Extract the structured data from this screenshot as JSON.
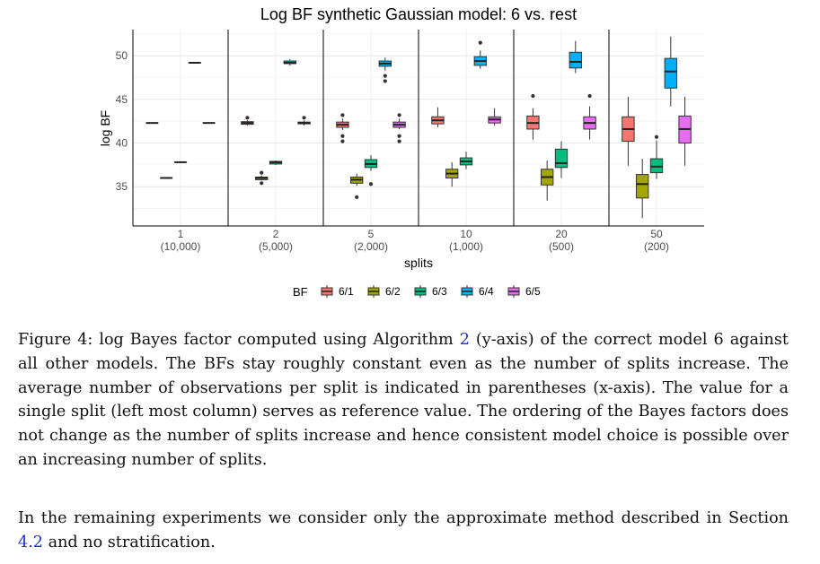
{
  "chart_data": {
    "type": "boxplot",
    "title": "Log BF synthetic Gaussian model: 6 vs. rest",
    "xlabel": "splits",
    "ylabel": "log BF",
    "ylim": [
      30.5,
      53
    ],
    "yticks": [
      35,
      40,
      45,
      50
    ],
    "panels": [
      {
        "label": "1",
        "sublabel": "(10,000)"
      },
      {
        "label": "2",
        "sublabel": "(5,000)"
      },
      {
        "label": "5",
        "sublabel": "(2,000)"
      },
      {
        "label": "10",
        "sublabel": "(1,000)"
      },
      {
        "label": "20",
        "sublabel": "(500)"
      },
      {
        "label": "50",
        "sublabel": "(200)"
      }
    ],
    "legend": {
      "title": "BF",
      "position": "bottom",
      "entries": [
        {
          "name": "6/1",
          "color": "#F8766D"
        },
        {
          "name": "6/2",
          "color": "#A3A500"
        },
        {
          "name": "6/3",
          "color": "#00BF7D"
        },
        {
          "name": "6/4",
          "color": "#00B0F6"
        },
        {
          "name": "6/5",
          "color": "#E76BF3"
        }
      ]
    },
    "series": [
      {
        "name": "6/1",
        "boxes": [
          {
            "min": 42.3,
            "q1": 42.3,
            "median": 42.3,
            "q3": 42.3,
            "max": 42.3,
            "outliers": []
          },
          {
            "min": 42.0,
            "q1": 42.15,
            "median": 42.3,
            "q3": 42.45,
            "max": 42.6,
            "outliers": [
              42.9
            ]
          },
          {
            "min": 41.5,
            "q1": 41.8,
            "median": 42.1,
            "q3": 42.4,
            "max": 42.8,
            "outliers": [
              43.2,
              40.8,
              40.2
            ]
          },
          {
            "min": 41.8,
            "q1": 42.2,
            "median": 42.6,
            "q3": 43.0,
            "max": 44.1,
            "outliers": []
          },
          {
            "min": 40.4,
            "q1": 41.6,
            "median": 42.3,
            "q3": 43.1,
            "max": 44.0,
            "outliers": [
              45.4
            ]
          },
          {
            "min": 37.4,
            "q1": 40.2,
            "median": 41.6,
            "q3": 43.0,
            "max": 45.3,
            "outliers": []
          }
        ]
      },
      {
        "name": "6/2",
        "boxes": [
          {
            "min": 36.0,
            "q1": 36.0,
            "median": 36.0,
            "q3": 36.0,
            "max": 36.0,
            "outliers": []
          },
          {
            "min": 35.7,
            "q1": 35.8,
            "median": 36.0,
            "q3": 36.1,
            "max": 36.3,
            "outliers": [
              36.6,
              35.4
            ]
          },
          {
            "min": 35.1,
            "q1": 35.4,
            "median": 35.8,
            "q3": 36.1,
            "max": 36.5,
            "outliers": [
              33.8
            ]
          },
          {
            "min": 35.0,
            "q1": 36.0,
            "median": 36.5,
            "q3": 37.0,
            "max": 37.8,
            "outliers": []
          },
          {
            "min": 33.4,
            "q1": 35.2,
            "median": 36.1,
            "q3": 37.0,
            "max": 38.0,
            "outliers": []
          },
          {
            "min": 31.4,
            "q1": 33.7,
            "median": 35.3,
            "q3": 36.4,
            "max": 38.2,
            "outliers": []
          }
        ]
      },
      {
        "name": "6/3",
        "boxes": [
          {
            "min": 37.8,
            "q1": 37.8,
            "median": 37.8,
            "q3": 37.8,
            "max": 37.8,
            "outliers": []
          },
          {
            "min": 37.5,
            "q1": 37.6,
            "median": 37.8,
            "q3": 37.9,
            "max": 38.0,
            "outliers": []
          },
          {
            "min": 36.8,
            "q1": 37.2,
            "median": 37.6,
            "q3": 38.1,
            "max": 38.6,
            "outliers": [
              35.3
            ]
          },
          {
            "min": 37.0,
            "q1": 37.5,
            "median": 37.9,
            "q3": 38.3,
            "max": 39.0,
            "outliers": []
          },
          {
            "min": 36.0,
            "q1": 37.2,
            "median": 37.7,
            "q3": 39.3,
            "max": 40.2,
            "outliers": []
          },
          {
            "min": 35.9,
            "q1": 36.6,
            "median": 37.3,
            "q3": 38.2,
            "max": 40.3,
            "outliers": [
              40.7
            ]
          }
        ]
      },
      {
        "name": "6/4",
        "boxes": [
          {
            "min": 49.2,
            "q1": 49.2,
            "median": 49.2,
            "q3": 49.2,
            "max": 49.2,
            "outliers": []
          },
          {
            "min": 48.9,
            "q1": 49.1,
            "median": 49.2,
            "q3": 49.4,
            "max": 49.6,
            "outliers": []
          },
          {
            "min": 48.3,
            "q1": 48.8,
            "median": 49.1,
            "q3": 49.4,
            "max": 49.8,
            "outliers": [
              47.7,
              47.1
            ]
          },
          {
            "min": 48.5,
            "q1": 48.9,
            "median": 49.4,
            "q3": 49.9,
            "max": 50.6,
            "outliers": [
              51.5
            ]
          },
          {
            "min": 48.0,
            "q1": 48.6,
            "median": 49.3,
            "q3": 50.4,
            "max": 51.7,
            "outliers": []
          },
          {
            "min": 44.2,
            "q1": 46.3,
            "median": 48.2,
            "q3": 49.7,
            "max": 52.2,
            "outliers": []
          }
        ]
      },
      {
        "name": "6/5",
        "boxes": [
          {
            "min": 42.3,
            "q1": 42.3,
            "median": 42.3,
            "q3": 42.3,
            "max": 42.3,
            "outliers": []
          },
          {
            "min": 42.0,
            "q1": 42.2,
            "median": 42.3,
            "q3": 42.4,
            "max": 42.6,
            "outliers": [
              42.9
            ]
          },
          {
            "min": 41.6,
            "q1": 41.8,
            "median": 42.1,
            "q3": 42.4,
            "max": 42.8,
            "outliers": [
              43.2,
              40.8,
              40.2
            ]
          },
          {
            "min": 42.0,
            "q1": 42.3,
            "median": 42.7,
            "q3": 43.0,
            "max": 44.0,
            "outliers": []
          },
          {
            "min": 40.4,
            "q1": 41.6,
            "median": 42.3,
            "q3": 43.0,
            "max": 44.2,
            "outliers": [
              45.4
            ]
          },
          {
            "min": 37.4,
            "q1": 40.0,
            "median": 41.6,
            "q3": 43.1,
            "max": 45.3,
            "outliers": []
          }
        ]
      }
    ]
  },
  "caption": {
    "before_ref": "Figure 4: log Bayes factor computed using Algorithm ",
    "ref": "2",
    "after_ref": " (y-axis) of the correct model 6 against all other models. The BFs stay roughly constant even as the number of splits increase. The average number of observations per split is indicated in parentheses (x-axis). The value for a single split (left most column) serves as reference value. The ordering of the Bayes factors does not change as the number of splits increase and hence consistent model choice is possible over an increasing number of splits."
  },
  "paragraph": {
    "before_ref": "In the remaining experiments we consider only the approximate method described in Section ",
    "ref": "4.2",
    "after_ref": " and no stratification."
  }
}
